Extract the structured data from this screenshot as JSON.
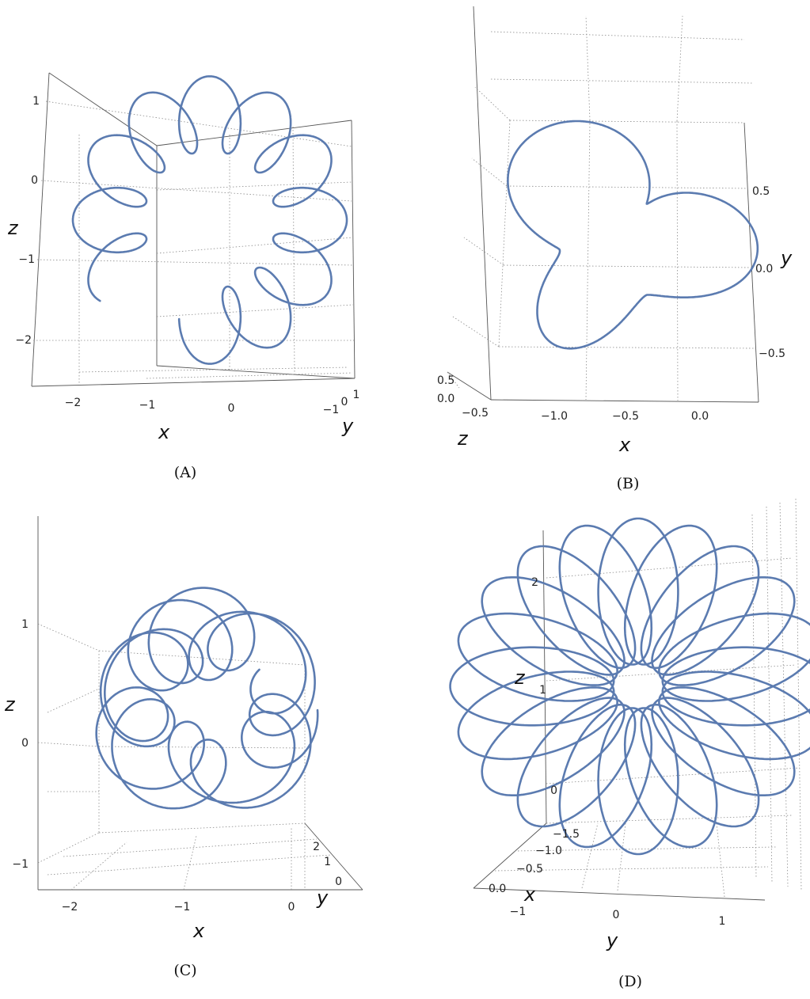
{
  "chart_data": [
    {
      "panel": "A",
      "type": "line",
      "caption": "(A)",
      "xlabel": "x",
      "ylabel": "y",
      "zlabel": "z",
      "x_ticks": [
        "−2",
        "−1",
        "0"
      ],
      "y_ticks": [
        "−1",
        "0",
        "1"
      ],
      "z_ticks": [
        "1",
        "0",
        "−1",
        "−2"
      ],
      "curve": {
        "kind": "ring_of_loops",
        "loops": 12,
        "gap_start_deg": 212,
        "gap_end_deg": 262
      }
    },
    {
      "panel": "B",
      "type": "line",
      "caption": "(B)",
      "xlabel": "x",
      "ylabel": "y",
      "zlabel": "z",
      "x_ticks": [
        "−1.0",
        "−0.5",
        "0.0"
      ],
      "x_corner_tick": "−0.5",
      "y_ticks": [
        "0.5",
        "0.0",
        "−0.5"
      ],
      "z_ticks": [
        "0.5",
        "0.0"
      ],
      "curve": {
        "kind": "three_lobed_knot",
        "lobes": 3
      }
    },
    {
      "panel": "C",
      "type": "line",
      "caption": "(C)",
      "xlabel": "x",
      "ylabel": "y",
      "zlabel": "z",
      "x_ticks": [
        "−2",
        "−1",
        "0"
      ],
      "y_ticks": [
        "2",
        "1",
        "0"
      ],
      "z_ticks": [
        "1",
        "0",
        "−1"
      ],
      "curve": {
        "kind": "tangled_loops"
      }
    },
    {
      "panel": "D",
      "type": "line",
      "caption": "(D)",
      "xlabel": "x",
      "ylabel": "y",
      "zlabel": "z",
      "x_ticks": [
        "−1.5",
        "−1.0",
        "−0.5",
        "0.0"
      ],
      "y_ticks": [
        "−1",
        "0",
        "1"
      ],
      "z_ticks": [
        "2",
        "1",
        "0"
      ],
      "curve": {
        "kind": "rosette",
        "petals": 20
      }
    }
  ]
}
